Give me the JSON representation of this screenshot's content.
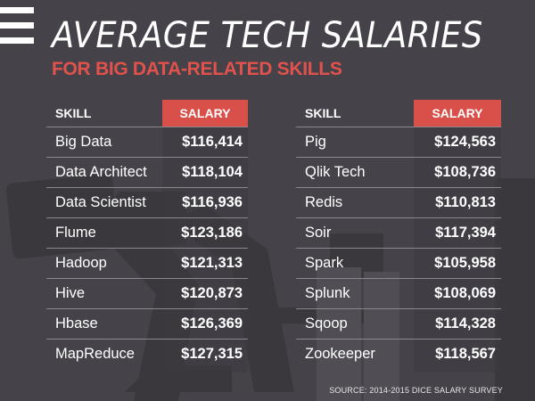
{
  "header": {
    "title": "AVERAGE TECH SALARIES",
    "subtitle": "FOR BIG DATA-RELATED SKILLS"
  },
  "colors": {
    "background": "#454349",
    "accent": "#d9504b",
    "text": "#ffffff"
  },
  "icons": {
    "menu": "hamburger-menu-icon"
  },
  "chart_data": [
    {
      "type": "table",
      "columns": [
        "SKILL",
        "SALARY"
      ],
      "rows": [
        {
          "skill": "Big Data",
          "salary": "$116,414"
        },
        {
          "skill": "Data Architect",
          "salary": "$118,104"
        },
        {
          "skill": "Data Scientist",
          "salary": "$116,936"
        },
        {
          "skill": "Flume",
          "salary": "$123,186"
        },
        {
          "skill": "Hadoop",
          "salary": "$121,313"
        },
        {
          "skill": "Hive",
          "salary": "$120,873"
        },
        {
          "skill": "Hbase",
          "salary": "$126,369"
        },
        {
          "skill": "MapReduce",
          "salary": "$127,315"
        }
      ]
    },
    {
      "type": "table",
      "columns": [
        "SKILL",
        "SALARY"
      ],
      "rows": [
        {
          "skill": "Pig",
          "salary": "$124,563"
        },
        {
          "skill": "Qlik Tech",
          "salary": "$108,736"
        },
        {
          "skill": "Redis",
          "salary": "$110,813"
        },
        {
          "skill": "Soir",
          "salary": "$117,394"
        },
        {
          "skill": "Spark",
          "salary": "$105,958"
        },
        {
          "skill": "Splunk",
          "salary": "$108,069"
        },
        {
          "skill": "Sqoop",
          "salary": "$114,328"
        },
        {
          "skill": "Zookeeper",
          "salary": "$118,567"
        }
      ]
    }
  ],
  "footer": {
    "source": "SOURCE: 2014-2015 DICE SALARY SURVEY"
  }
}
